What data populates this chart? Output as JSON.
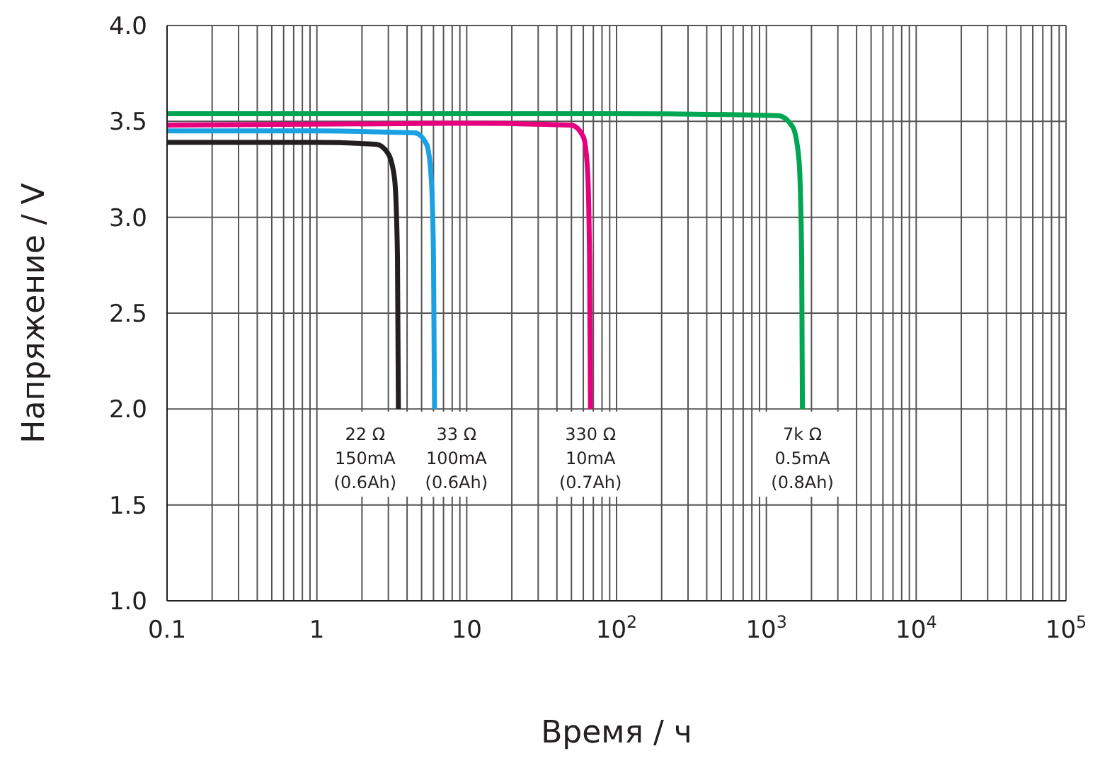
{
  "chart_data": {
    "type": "line",
    "xlabel": "Время / ч",
    "ylabel": "Напряжение / V",
    "log": "x",
    "grid": true,
    "line_style": "solid",
    "marker": "none",
    "legend": false,
    "xlim": [
      0.1,
      100000
    ],
    "ylim": [
      1,
      4
    ],
    "xticks": [
      {
        "value": 0.1,
        "label": "0.1"
      },
      {
        "value": 0.2,
        "label": null
      },
      {
        "value": 0.3,
        "label": null
      },
      {
        "value": 0.4,
        "label": null
      },
      {
        "value": 0.5,
        "label": null
      },
      {
        "value": 0.6,
        "label": null
      },
      {
        "value": 0.7,
        "label": null
      },
      {
        "value": 0.8,
        "label": null
      },
      {
        "value": 0.9,
        "label": null
      },
      1,
      {
        "value": 2,
        "label": null
      },
      {
        "value": 3,
        "label": null
      },
      {
        "value": 4,
        "label": null
      },
      {
        "value": 5,
        "label": null
      },
      {
        "value": 6,
        "label": null
      },
      {
        "value": 7,
        "label": null
      },
      {
        "value": 8,
        "label": null
      },
      {
        "value": 9,
        "label": null
      },
      10,
      {
        "value": 20,
        "label": null
      },
      {
        "value": 30,
        "label": null
      },
      {
        "value": 40,
        "label": null
      },
      {
        "value": 50,
        "label": null
      },
      {
        "value": 60,
        "label": null
      },
      {
        "value": 70,
        "label": null
      },
      {
        "value": 80,
        "label": null
      },
      {
        "value": 90,
        "label": null
      },
      {
        "value": 100,
        "label": "10$^{2}$"
      },
      {
        "value": 200,
        "label": null
      },
      {
        "value": 300,
        "label": null
      },
      {
        "value": 400,
        "label": null
      },
      {
        "value": 500,
        "label": null
      },
      {
        "value": 600,
        "label": null
      },
      {
        "value": 700,
        "label": null
      },
      {
        "value": 800,
        "label": null
      },
      {
        "value": 900,
        "label": null
      },
      {
        "value": 1000,
        "label": "10$^{3}$"
      },
      {
        "value": 2000,
        "label": null
      },
      {
        "value": 3000,
        "label": null
      },
      {
        "value": 4000,
        "label": null
      },
      {
        "value": 5000,
        "label": null
      },
      {
        "value": 6000,
        "label": null
      },
      {
        "value": 7000,
        "label": null
      },
      {
        "value": 8000,
        "label": null
      },
      {
        "value": 9000,
        "label": null
      },
      {
        "value": 10000,
        "label": "10$^{4}$"
      },
      {
        "value": 20000,
        "label": null
      },
      {
        "value": 30000,
        "label": null
      },
      {
        "value": 40000,
        "label": null
      },
      {
        "value": 50000,
        "label": null
      },
      {
        "value": 60000,
        "label": null
      },
      {
        "value": 70000,
        "label": null
      },
      {
        "value": 80000,
        "label": null
      },
      {
        "value": 90000,
        "label": null
      },
      {
        "value": 100000,
        "label": "10$^{5}$"
      }
    ],
    "yticks": [
      {
        "value": 1,
        "label": "1.0"
      },
      1.5,
      {
        "value": 2,
        "label": "2.0"
      },
      2.5,
      {
        "value": 3,
        "label": "3.0"
      },
      3.5,
      {
        "value": 4,
        "label": "4.0"
      }
    ],
    "series": [
      {
        "color": "#231f20",
        "x": [
          0.1,
          1,
          2.5,
          3,
          3.3,
          3.45,
          3.5
        ],
        "values": [
          3.39,
          3.39,
          3.38,
          3.33,
          3.2,
          2.8,
          2
        ]
      },
      {
        "color": "#1ba1e2",
        "x": [
          0.1,
          1,
          4.5,
          5.4,
          5.8,
          6,
          6.1
        ],
        "values": [
          3.45,
          3.45,
          3.44,
          3.38,
          3.2,
          2.8,
          2
        ]
      },
      {
        "color": "#e6007e",
        "x": [
          0.1,
          10,
          50,
          60,
          64,
          66,
          67
        ],
        "values": [
          3.48,
          3.49,
          3.48,
          3.42,
          3.25,
          2.8,
          2
        ]
      },
      {
        "color": "#00a651",
        "x": [
          0.1,
          100,
          1200,
          1500,
          1650,
          1720,
          1740
        ],
        "values": [
          3.54,
          3.54,
          3.53,
          3.47,
          3.3,
          2.8,
          2
        ]
      }
    ],
    "annotations": [
      "22 Ω\n150mA\n(0.6Ah)",
      "33 Ω\n100mA\n(0.6Ah)",
      "330 Ω\n10mA\n(0.7Ah)",
      "7k Ω\n0.5mA\n(0.8Ah)"
    ]
  }
}
